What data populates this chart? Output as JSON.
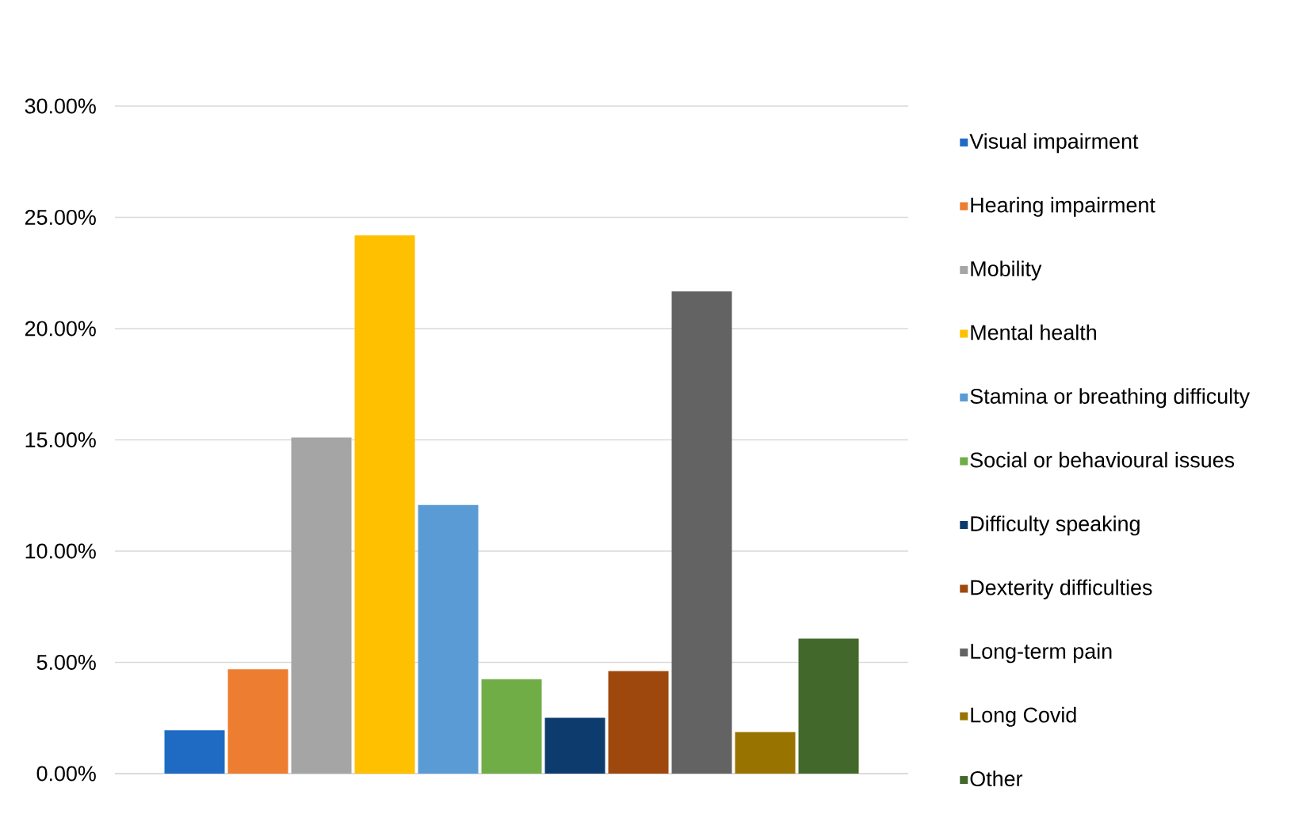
{
  "chart_data": {
    "type": "bar",
    "categories": [
      null
    ],
    "series": [
      {
        "name": "Visual impairment",
        "color": "#1f6bc4",
        "values": [
          1.95
        ]
      },
      {
        "name": "Hearing impairment",
        "color": "#ed7d31",
        "values": [
          4.69
        ]
      },
      {
        "name": "Mobility",
        "color": "#a5a5a5",
        "values": [
          15.11
        ]
      },
      {
        "name": "Mental health",
        "color": "#ffc000",
        "values": [
          24.19
        ]
      },
      {
        "name": "Stamina or breathing difficulty",
        "color": "#5b9bd5",
        "values": [
          12.07
        ]
      },
      {
        "name": "Social or behavioural issues",
        "color": "#70ad47",
        "values": [
          4.24
        ]
      },
      {
        "name": "Difficulty speaking",
        "color": "#0d3b6e",
        "values": [
          2.51
        ]
      },
      {
        "name": "Dexterity difficulties",
        "color": "#9e480e",
        "values": [
          4.61
        ]
      },
      {
        "name": "Long-term pain",
        "color": "#636363",
        "values": [
          21.67
        ]
      },
      {
        "name": "Long Covid",
        "color": "#997300",
        "values": [
          1.87
        ]
      },
      {
        "name": "Other",
        "color": "#43682b",
        "values": [
          6.07
        ]
      }
    ],
    "ylim": [
      0,
      30
    ],
    "yticks": [
      {
        "value": 0,
        "label": "0.00%"
      },
      {
        "value": 5,
        "label": "5.00%"
      },
      {
        "value": 10,
        "label": "10.00%"
      },
      {
        "value": 15,
        "label": "15.00%"
      },
      {
        "value": 20,
        "label": "20.00%"
      },
      {
        "value": 25,
        "label": "25.00%"
      },
      {
        "value": 30,
        "label": "30.00%"
      }
    ],
    "grid": "y",
    "legend": "right"
  }
}
